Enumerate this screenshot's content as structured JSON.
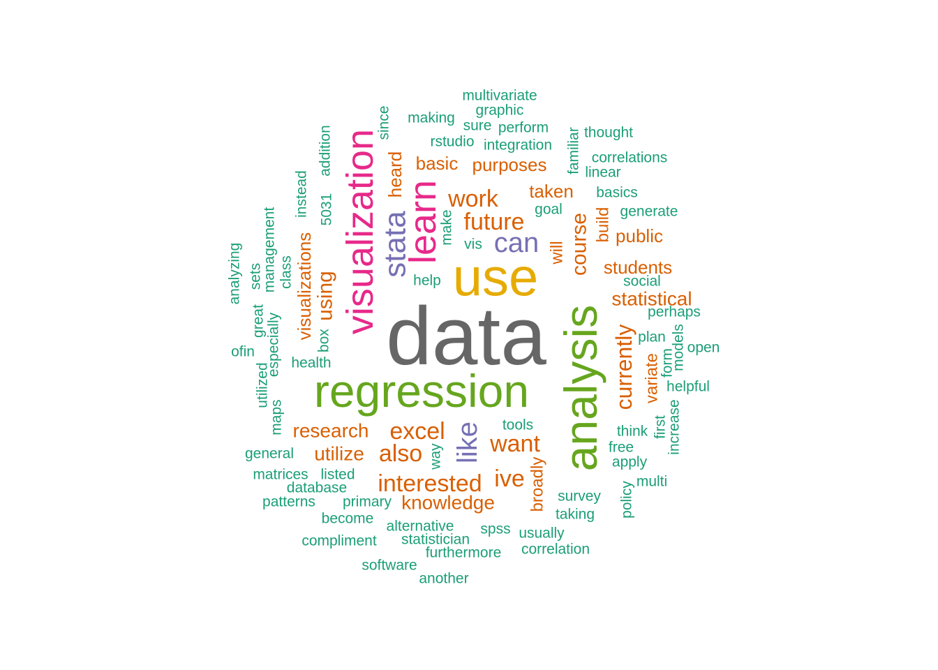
{
  "colors": {
    "gray": "#666666",
    "green": "#66a61e",
    "gold": "#e6ab02",
    "pink": "#e7298a",
    "purple": "#7570b3",
    "orange": "#d95f02",
    "teal": "#1b9e77"
  },
  "words": [
    {
      "text": "data",
      "color": "gray",
      "rotated": false
    },
    {
      "text": "regression",
      "color": "green",
      "rotated": false
    },
    {
      "text": "use",
      "color": "gold",
      "rotated": false
    },
    {
      "text": "analysis",
      "color": "green",
      "rotated": true
    },
    {
      "text": "visualization",
      "color": "pink",
      "rotated": true
    },
    {
      "text": "learn",
      "color": "pink",
      "rotated": true
    },
    {
      "text": "stata",
      "color": "purple",
      "rotated": true
    },
    {
      "text": "can",
      "color": "purple",
      "rotated": false
    },
    {
      "text": "like",
      "color": "purple",
      "rotated": true
    },
    {
      "text": "work",
      "color": "orange",
      "rotated": false
    },
    {
      "text": "future",
      "color": "orange",
      "rotated": false
    },
    {
      "text": "course",
      "color": "orange",
      "rotated": true
    },
    {
      "text": "interested",
      "color": "orange",
      "rotated": false
    },
    {
      "text": "excel",
      "color": "orange",
      "rotated": false
    },
    {
      "text": "want",
      "color": "orange",
      "rotated": false
    },
    {
      "text": "also",
      "color": "orange",
      "rotated": false
    },
    {
      "text": "ive",
      "color": "orange",
      "rotated": false
    },
    {
      "text": "currently",
      "color": "orange",
      "rotated": true
    },
    {
      "text": "statistical",
      "color": "orange",
      "rotated": false
    },
    {
      "text": "research",
      "color": "orange",
      "rotated": false
    },
    {
      "text": "knowledge",
      "color": "orange",
      "rotated": false
    },
    {
      "text": "using",
      "color": "orange",
      "rotated": true
    },
    {
      "text": "utilize",
      "color": "orange",
      "rotated": false
    },
    {
      "text": "students",
      "color": "orange",
      "rotated": false
    },
    {
      "text": "public",
      "color": "orange",
      "rotated": false
    },
    {
      "text": "purposes",
      "color": "orange",
      "rotated": false
    },
    {
      "text": "basic",
      "color": "orange",
      "rotated": false
    },
    {
      "text": "taken",
      "color": "orange",
      "rotated": false
    },
    {
      "text": "visualizations",
      "color": "orange",
      "rotated": true
    },
    {
      "text": "heard",
      "color": "orange",
      "rotated": true
    },
    {
      "text": "build",
      "color": "orange",
      "rotated": true
    },
    {
      "text": "will",
      "color": "orange",
      "rotated": true
    },
    {
      "text": "broadly",
      "color": "orange",
      "rotated": true
    },
    {
      "text": "variate",
      "color": "orange",
      "rotated": true
    },
    {
      "text": "multivariate",
      "color": "teal",
      "rotated": false
    },
    {
      "text": "graphic",
      "color": "teal",
      "rotated": false
    },
    {
      "text": "making",
      "color": "teal",
      "rotated": false
    },
    {
      "text": "sure",
      "color": "teal",
      "rotated": false
    },
    {
      "text": "perform",
      "color": "teal",
      "rotated": false
    },
    {
      "text": "thought",
      "color": "teal",
      "rotated": false
    },
    {
      "text": "since",
      "color": "teal",
      "rotated": true
    },
    {
      "text": "rstudio",
      "color": "teal",
      "rotated": false
    },
    {
      "text": "integration",
      "color": "teal",
      "rotated": false
    },
    {
      "text": "familiar",
      "color": "teal",
      "rotated": true
    },
    {
      "text": "correlations",
      "color": "teal",
      "rotated": false
    },
    {
      "text": "addition",
      "color": "teal",
      "rotated": true
    },
    {
      "text": "linear",
      "color": "teal",
      "rotated": false
    },
    {
      "text": "basics",
      "color": "teal",
      "rotated": false
    },
    {
      "text": "instead",
      "color": "teal",
      "rotated": true
    },
    {
      "text": "5031",
      "color": "teal",
      "rotated": true
    },
    {
      "text": "goal",
      "color": "teal",
      "rotated": false
    },
    {
      "text": "generate",
      "color": "teal",
      "rotated": false
    },
    {
      "text": "management",
      "color": "teal",
      "rotated": true
    },
    {
      "text": "make",
      "color": "teal",
      "rotated": true
    },
    {
      "text": "vis",
      "color": "teal",
      "rotated": false
    },
    {
      "text": "analyzing",
      "color": "teal",
      "rotated": true
    },
    {
      "text": "sets",
      "color": "teal",
      "rotated": true
    },
    {
      "text": "class",
      "color": "teal",
      "rotated": true
    },
    {
      "text": "help",
      "color": "teal",
      "rotated": false
    },
    {
      "text": "social",
      "color": "teal",
      "rotated": false
    },
    {
      "text": "great",
      "color": "teal",
      "rotated": true
    },
    {
      "text": "especially",
      "color": "teal",
      "rotated": true
    },
    {
      "text": "perhaps",
      "color": "teal",
      "rotated": false
    },
    {
      "text": "box",
      "color": "teal",
      "rotated": true
    },
    {
      "text": "ofin",
      "color": "teal",
      "rotated": false
    },
    {
      "text": "plan",
      "color": "teal",
      "rotated": false
    },
    {
      "text": "models",
      "color": "teal",
      "rotated": true
    },
    {
      "text": "open",
      "color": "teal",
      "rotated": false
    },
    {
      "text": "form",
      "color": "teal",
      "rotated": true
    },
    {
      "text": "health",
      "color": "teal",
      "rotated": false
    },
    {
      "text": "utilized",
      "color": "teal",
      "rotated": true
    },
    {
      "text": "helpful",
      "color": "teal",
      "rotated": false
    },
    {
      "text": "maps",
      "color": "teal",
      "rotated": true
    },
    {
      "text": "increase",
      "color": "teal",
      "rotated": true
    },
    {
      "text": "first",
      "color": "teal",
      "rotated": true
    },
    {
      "text": "tools",
      "color": "teal",
      "rotated": false
    },
    {
      "text": "think",
      "color": "teal",
      "rotated": false
    },
    {
      "text": "general",
      "color": "teal",
      "rotated": false
    },
    {
      "text": "way",
      "color": "teal",
      "rotated": true
    },
    {
      "text": "free",
      "color": "teal",
      "rotated": false
    },
    {
      "text": "apply",
      "color": "teal",
      "rotated": false
    },
    {
      "text": "matrices",
      "color": "teal",
      "rotated": false
    },
    {
      "text": "listed",
      "color": "teal",
      "rotated": false
    },
    {
      "text": "multi",
      "color": "teal",
      "rotated": false
    },
    {
      "text": "database",
      "color": "teal",
      "rotated": false
    },
    {
      "text": "policy",
      "color": "teal",
      "rotated": true
    },
    {
      "text": "patterns",
      "color": "teal",
      "rotated": false
    },
    {
      "text": "primary",
      "color": "teal",
      "rotated": false
    },
    {
      "text": "survey",
      "color": "teal",
      "rotated": false
    },
    {
      "text": "taking",
      "color": "teal",
      "rotated": false
    },
    {
      "text": "become",
      "color": "teal",
      "rotated": false
    },
    {
      "text": "alternative",
      "color": "teal",
      "rotated": false
    },
    {
      "text": "spss",
      "color": "teal",
      "rotated": false
    },
    {
      "text": "usually",
      "color": "teal",
      "rotated": false
    },
    {
      "text": "compliment",
      "color": "teal",
      "rotated": false
    },
    {
      "text": "statistician",
      "color": "teal",
      "rotated": false
    },
    {
      "text": "correlation",
      "color": "teal",
      "rotated": false
    },
    {
      "text": "furthermore",
      "color": "teal",
      "rotated": false
    },
    {
      "text": "software",
      "color": "teal",
      "rotated": false
    },
    {
      "text": "another",
      "color": "teal",
      "rotated": false
    }
  ]
}
